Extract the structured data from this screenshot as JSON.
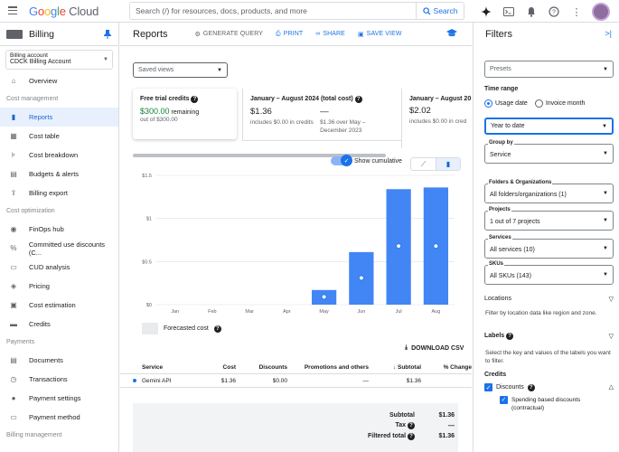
{
  "topbar": {
    "logo_google": "Google",
    "logo_cloud": "Cloud",
    "search_placeholder": "Search (/) for resources, docs, products, and more",
    "search_button": "Search"
  },
  "sidebar": {
    "title": "Billing",
    "account_label": "Billing account",
    "account_value": "CDCK Billing Account",
    "overview": "Overview",
    "section_cost": "Cost management",
    "cost_items": [
      "Reports",
      "Cost table",
      "Cost breakdown",
      "Budgets & alerts",
      "Billing export"
    ],
    "section_opt": "Cost optimization",
    "opt_items": [
      "FinOps hub",
      "Committed use discounts (C...",
      "CUD analysis",
      "Pricing",
      "Cost estimation",
      "Credits"
    ],
    "section_pay": "Payments",
    "pay_items": [
      "Documents",
      "Transactions",
      "Payment settings",
      "Payment method"
    ],
    "section_mgmt": "Billing management"
  },
  "main": {
    "title": "Reports",
    "generate_query": "GENERATE QUERY",
    "print": "PRINT",
    "share": "SHARE",
    "save_view": "SAVE VIEW",
    "saved_views": "Saved views",
    "card1": {
      "title": "Free trial credits",
      "amount": "$300.00",
      "remaining": "remaining",
      "sub": "out of $300.00"
    },
    "card2": {
      "title": "January – August 2024 (total cost)",
      "amount": "$1.36",
      "sub": "includes $0.00 in credits",
      "dash": "—",
      "cmp": "$1.36 over May – December 2023"
    },
    "card3": {
      "title": "January – August 20",
      "amount": "$2.02",
      "sub": "includes $0.00 in cred"
    },
    "show_cumulative": "Show cumulative",
    "forecasted_cost": "Forecasted cost",
    "download_csv": "DOWNLOAD CSV"
  },
  "chart_data": {
    "type": "bar",
    "categories": [
      "Jan",
      "Feb",
      "Mar",
      "Apr",
      "May",
      "Jun",
      "Jul",
      "Aug"
    ],
    "series": [
      {
        "name": "",
        "values": [
          0,
          0,
          0,
          0,
          0.17,
          0.61,
          1.34,
          1.36
        ]
      }
    ],
    "points": [
      0,
      0,
      0,
      0,
      0.09,
      0.31,
      0.68,
      0.68
    ],
    "ylim": [
      0,
      1.5
    ],
    "yticks": [
      "$0",
      "$0.5",
      "$1",
      "$1.5"
    ],
    "xlabel": "",
    "ylabel": "",
    "bar_color": "#4285f4"
  },
  "table": {
    "headers": [
      "Service",
      "Cost",
      "Discounts",
      "Promotions and others",
      "Subtotal",
      "% Change"
    ],
    "rows": [
      {
        "service": "Gemini API",
        "cost": "$1.36",
        "discounts": "$0.00",
        "promotions": "—",
        "subtotal": "$1.36",
        "change": ""
      }
    ]
  },
  "totals": {
    "subtotal_label": "Subtotal",
    "subtotal": "$1.36",
    "tax_label": "Tax",
    "tax": "—",
    "filtered_label": "Filtered total",
    "filtered": "$1.36"
  },
  "filters": {
    "title": "Filters",
    "presets": "Presets",
    "time_range": "Time range",
    "usage_date": "Usage date",
    "invoice_month": "Invoice month",
    "range_value": "Year to date",
    "group_by_label": "Group by",
    "group_by_value": "Service",
    "folders_label": "Folders & Organizations",
    "folders_value": "All folders/organizations (1)",
    "projects_label": "Projects",
    "projects_value": "1 out of 7 projects",
    "services_label": "Services",
    "services_value": "All services (10)",
    "skus_label": "SKUs",
    "skus_value": "All SKUs (143)",
    "locations": "Locations",
    "locations_desc": "Filter by location data like region and zone.",
    "labels": "Labels",
    "labels_desc": "Select the key and values of the labels you want to filter.",
    "credits": "Credits",
    "discounts": "Discounts",
    "spending_discounts": "Spending based discounts (contractual)"
  },
  "colors": {
    "accent": "#1a73e8",
    "bar": "#4285f4",
    "green": "#188038"
  }
}
